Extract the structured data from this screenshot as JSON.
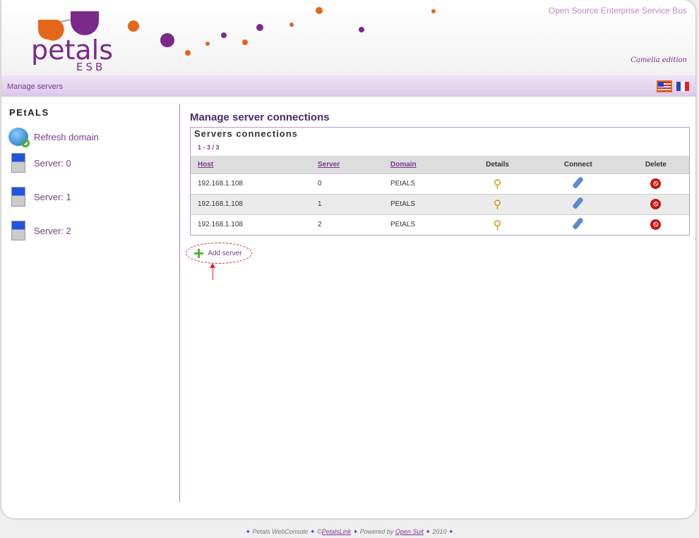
{
  "header": {
    "logo_text": "petals",
    "logo_sub": "ESB",
    "tagline": "Open Source Enterprise Service Bus",
    "edition": "Camelia edition"
  },
  "nav": {
    "breadcrumb": "Manage servers",
    "languages": [
      "en",
      "fr"
    ]
  },
  "sidebar": {
    "title": "PEtALS",
    "items": [
      {
        "label": "Refresh domain",
        "icon": "globe-refresh-icon"
      },
      {
        "label": "Server: 0",
        "icon": "server-icon"
      },
      {
        "label": "Server: 1",
        "icon": "server-icon"
      },
      {
        "label": "Server: 2",
        "icon": "server-icon"
      }
    ]
  },
  "main": {
    "title": "Manage server connections",
    "box_title": "Servers connections",
    "pager": "1 - 3 / 3",
    "columns": [
      "Host",
      "Server",
      "Domain",
      "Details",
      "Connect",
      "Delete"
    ],
    "rows": [
      {
        "host": "192.168.1.108",
        "server": "0",
        "domain": "PEtALS"
      },
      {
        "host": "192.168.1.108",
        "server": "1",
        "domain": "PEtALS"
      },
      {
        "host": "192.168.1.108",
        "server": "2",
        "domain": "PEtALS"
      }
    ],
    "add_label": "Add server"
  },
  "footer": {
    "app": "Petals WebConsole",
    "copyright": "©",
    "company": "PetalsLink",
    "powered": "Powered by",
    "powered_link": "Open Suit",
    "year": "2010"
  },
  "colors": {
    "accent": "#7a3a8a",
    "navbar": "#e6d8f2"
  }
}
